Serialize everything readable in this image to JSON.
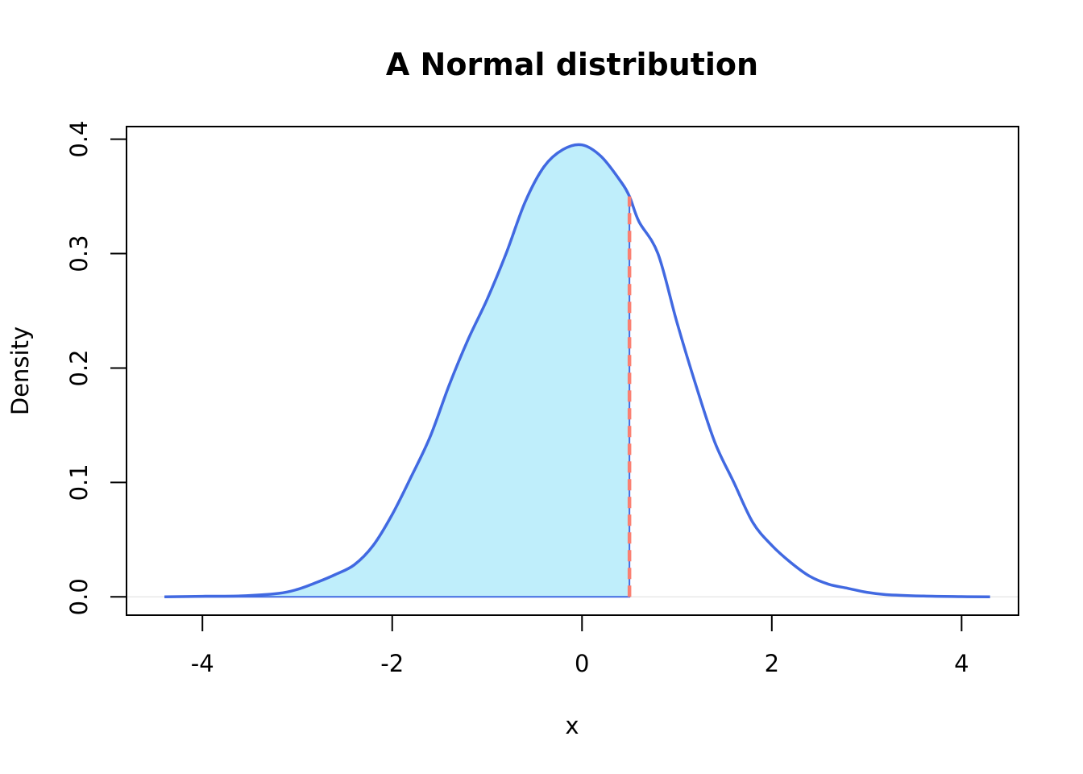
{
  "chart_data": {
    "type": "area",
    "title": "A Normal distribution",
    "xlabel": "x",
    "ylabel": "Density",
    "xlim": [
      -4.8,
      4.6
    ],
    "ylim": [
      -0.016,
      0.411
    ],
    "x_ticks": [
      -4,
      -2,
      0,
      2,
      4
    ],
    "x_tick_labels": [
      "-4",
      "-2",
      "0",
      "2",
      "4"
    ],
    "y_ticks": [
      0.0,
      0.1,
      0.2,
      0.3,
      0.4
    ],
    "y_tick_labels": [
      "0.0",
      "0.1",
      "0.2",
      "0.3",
      "0.4"
    ],
    "grid": false,
    "colors": {
      "curve": "#4169E1",
      "fill": "#BFEEFB",
      "marker": "#FA8072",
      "baseline": "#DDDDDD"
    },
    "series": [
      {
        "x": [
          -4.4,
          -4.0,
          -3.6,
          -3.2,
          -3.0,
          -2.8,
          -2.6,
          -2.4,
          -2.2,
          -2.0,
          -1.8,
          -1.6,
          -1.4,
          -1.2,
          -1.0,
          -0.8,
          -0.6,
          -0.4,
          -0.2,
          0.0,
          0.2,
          0.4,
          0.5,
          0.6,
          0.8,
          1.0,
          1.2,
          1.4,
          1.6,
          1.8,
          2.0,
          2.2,
          2.4,
          2.6,
          2.8,
          3.0,
          3.2,
          3.6,
          4.0,
          4.3
        ],
        "y": [
          0.0,
          0.0005,
          0.0008,
          0.003,
          0.0065,
          0.0125,
          0.0195,
          0.028,
          0.045,
          0.072,
          0.105,
          0.14,
          0.185,
          0.225,
          0.26,
          0.3,
          0.345,
          0.376,
          0.391,
          0.395,
          0.385,
          0.364,
          0.35,
          0.328,
          0.3,
          0.24,
          0.185,
          0.135,
          0.1,
          0.065,
          0.045,
          0.03,
          0.018,
          0.011,
          0.0075,
          0.004,
          0.002,
          0.0007,
          0.0002,
          0.0
        ]
      }
    ],
    "shaded_region": {
      "from": -4.4,
      "to": 0.5
    },
    "vertical_line": {
      "x": 0.5,
      "y_top": 0.35,
      "style": "dashed"
    }
  }
}
